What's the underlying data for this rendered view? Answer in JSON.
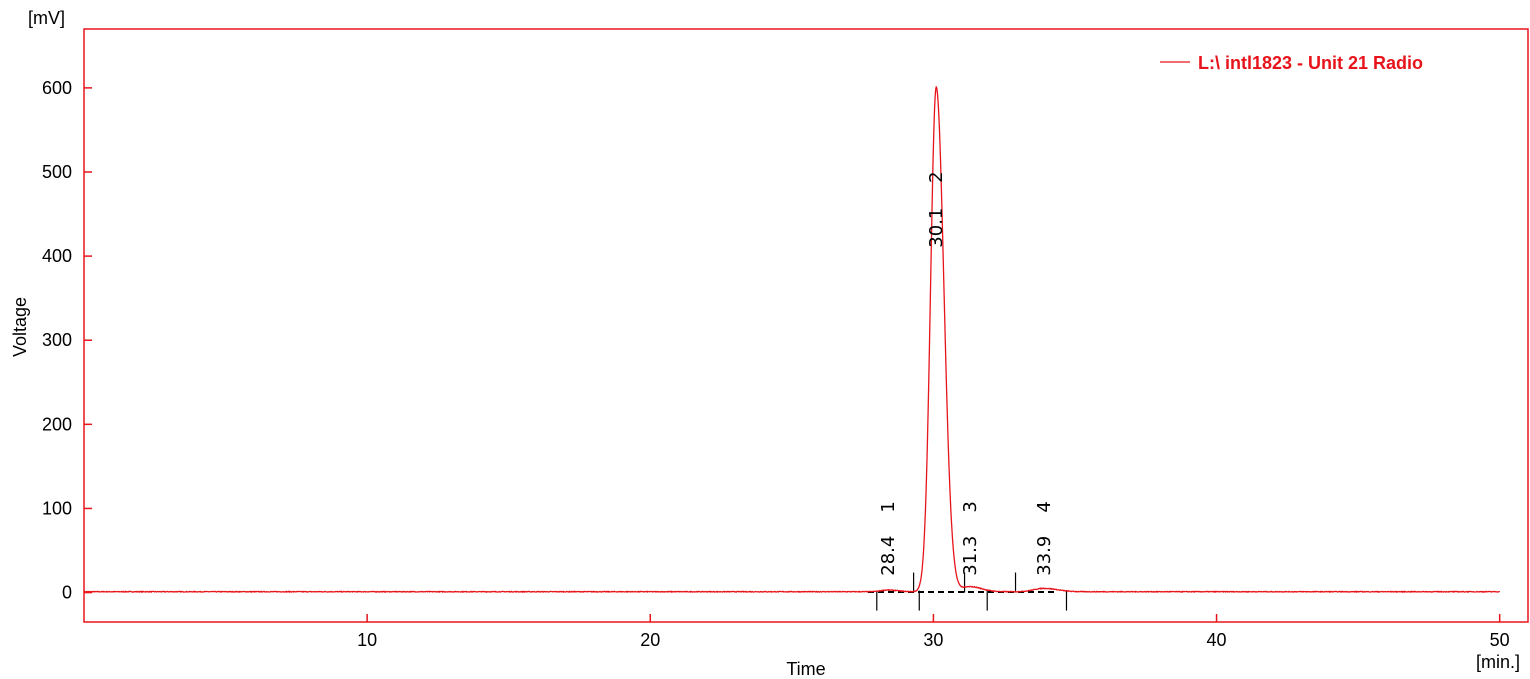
{
  "chart_data": {
    "type": "line",
    "xlabel": "Time",
    "ylabel": "Voltage",
    "x_unit": "[min.]",
    "y_unit": "[mV]",
    "xlim": [
      0,
      51
    ],
    "ylim": [
      -35,
      670
    ],
    "x_ticks": [
      10,
      20,
      30,
      40,
      50
    ],
    "y_ticks": [
      0,
      100,
      200,
      300,
      400,
      500,
      600
    ],
    "grid": false,
    "legend_position": "top-right",
    "color": "#e8141b",
    "series": [
      {
        "name": "L:\\ intl1823 - Unit 21 Radio",
        "x_range": [
          0,
          50
        ],
        "baseline": 1,
        "peaks": [
          {
            "rt": 28.4,
            "height": 2,
            "width": 0.25
          },
          {
            "rt": 30.1,
            "height": 600,
            "width": 0.2
          },
          {
            "rt": 31.3,
            "height": 6,
            "width": 0.3
          },
          {
            "rt": 33.9,
            "height": 4,
            "width": 0.35
          }
        ]
      }
    ],
    "peaks": [
      {
        "number": "1",
        "rt": "28.4"
      },
      {
        "number": "2",
        "rt": "30.1"
      },
      {
        "number": "3",
        "rt": "31.3"
      },
      {
        "number": "4",
        "rt": "33.9"
      }
    ],
    "integration_markers": [
      28.0,
      29.3,
      29.5,
      31.1,
      31.9,
      32.9,
      34.7
    ]
  }
}
